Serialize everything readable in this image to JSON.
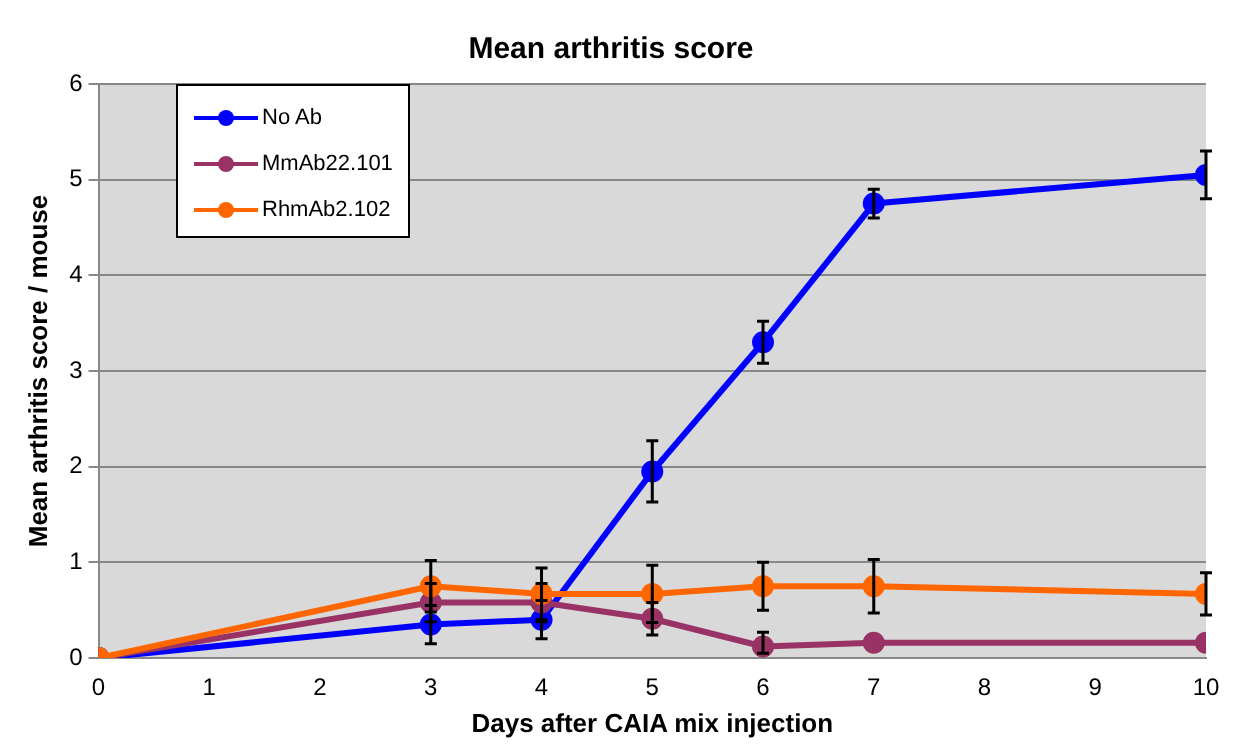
{
  "chart_data": {
    "type": "line",
    "title": "Mean arthritis score",
    "xlabel": "Days after CAIA mix injection",
    "ylabel": "Mean arthritis score / mouse",
    "xlim": [
      0,
      10
    ],
    "xticks": [
      0,
      1,
      2,
      3,
      4,
      5,
      6,
      7,
      8,
      9,
      10
    ],
    "ylim": [
      0,
      6
    ],
    "yticks": [
      0,
      1,
      2,
      3,
      4,
      5,
      6
    ],
    "grid": "y",
    "legend": "top left",
    "marker": "circle",
    "line_style": "solid",
    "x": [
      0,
      3,
      4,
      5,
      6,
      7,
      10
    ],
    "series": [
      {
        "name": "No Ab",
        "color": "#0000ff",
        "values": [
          0,
          0.35,
          0.4,
          1.95,
          3.3,
          4.75,
          5.05
        ],
        "errors": [
          null,
          0.2,
          0.2,
          0.32,
          0.22,
          0.15,
          0.25
        ]
      },
      {
        "name": "MmAb22.101",
        "color": "#993366",
        "values": [
          0,
          0.58,
          0.58,
          0.41,
          0.12,
          0.16,
          0.16
        ],
        "errors": [
          null,
          0.2,
          0.2,
          0.17,
          [
            0.05,
            0.27
          ],
          null,
          null
        ]
      },
      {
        "name": "RhmAb2.102",
        "color": "#ff6600",
        "values": [
          0,
          0.75,
          0.67,
          0.67,
          0.75,
          0.75,
          0.67
        ],
        "errors": [
          null,
          0.27,
          0.27,
          0.3,
          0.25,
          0.28,
          0.22
        ]
      }
    ]
  }
}
